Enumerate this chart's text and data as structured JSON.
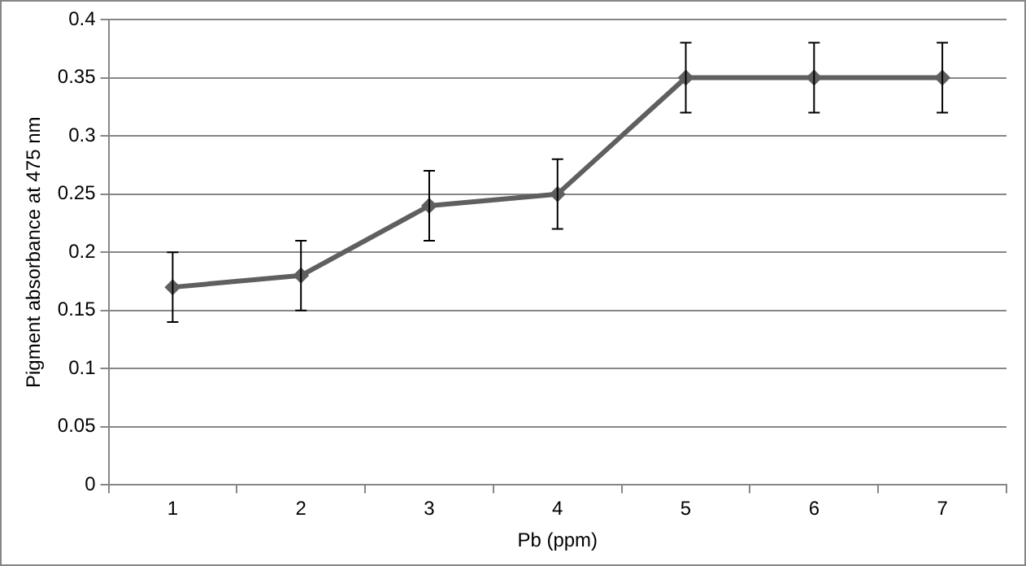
{
  "chart_data": {
    "type": "line",
    "xlabel": "Pb (ppm)",
    "ylabel": "Pigment absorbance at 475 nm",
    "categories": [
      "1",
      "2",
      "3",
      "4",
      "5",
      "6",
      "7"
    ],
    "series": [
      {
        "color": "#5f5f5f",
        "values": [
          0.17,
          0.18,
          0.24,
          0.25,
          0.35,
          0.35,
          0.35
        ],
        "errors": [
          0.03,
          0.03,
          0.03,
          0.03,
          0.03,
          0.03,
          0.03
        ]
      }
    ],
    "ylim": [
      0,
      0.4
    ],
    "yticks": [
      0,
      0.05,
      0.1,
      0.15,
      0.2,
      0.25,
      0.3,
      0.35,
      0.4
    ],
    "grid": "y",
    "legend": false,
    "marker": "diamond",
    "line_style": "solid"
  }
}
